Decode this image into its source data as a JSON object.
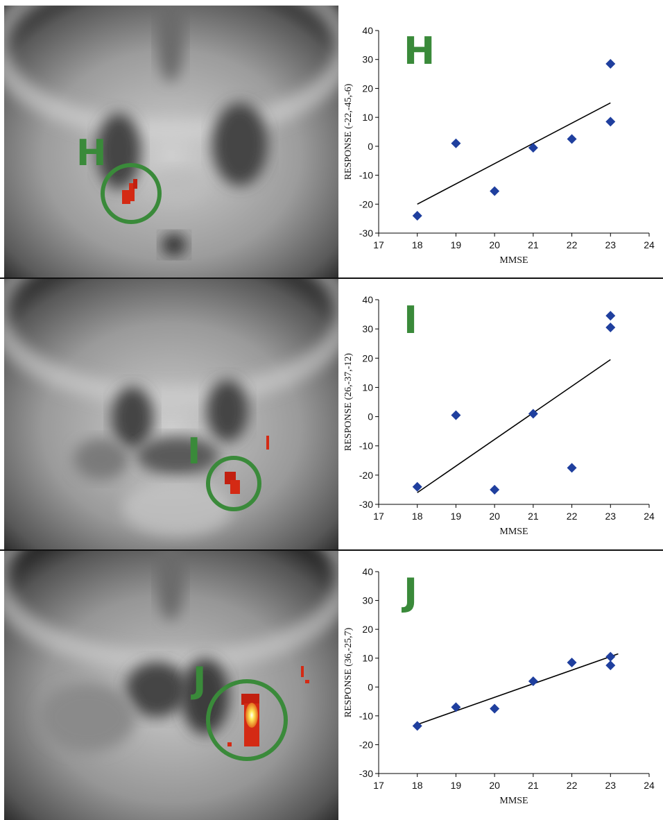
{
  "colors": {
    "marker": "#1f3f9e",
    "trendline": "#000000",
    "label_green": "#3a8a3a",
    "activation_red": "#d42a14",
    "activation_hot": "#ffe95a"
  },
  "panels": [
    {
      "letter": "H",
      "brain_label": "H",
      "chart_data": {
        "type": "scatter",
        "title": "H",
        "xlabel": "MMSE",
        "ylabel": "RESPONSE (-22,-45,-6)",
        "xlim": [
          17,
          24
        ],
        "ylim": [
          -30,
          40
        ],
        "x_ticks": [
          "17",
          "18",
          "19",
          "20",
          "21",
          "22",
          "23",
          "24"
        ],
        "y_ticks": [
          "-30",
          "-20",
          "-10",
          "0",
          "10",
          "20",
          "30",
          "40"
        ],
        "grid": false,
        "points": [
          [
            18,
            -24
          ],
          [
            19,
            1
          ],
          [
            20,
            -15.5
          ],
          [
            21,
            -0.5
          ],
          [
            22,
            2.5
          ],
          [
            23,
            28.5
          ],
          [
            23,
            8.5
          ]
        ],
        "trendline": [
          [
            18,
            -20
          ],
          [
            23,
            15
          ]
        ]
      }
    },
    {
      "letter": "I",
      "brain_label": "I",
      "chart_data": {
        "type": "scatter",
        "title": "I",
        "xlabel": "MMSE",
        "ylabel": "RESPONSE (26,-37,-12)",
        "xlim": [
          17,
          24
        ],
        "ylim": [
          -30,
          40
        ],
        "x_ticks": [
          "17",
          "18",
          "19",
          "20",
          "21",
          "22",
          "23",
          "24"
        ],
        "y_ticks": [
          "-30",
          "-20",
          "-10",
          "0",
          "10",
          "20",
          "30",
          "40"
        ],
        "grid": false,
        "points": [
          [
            18,
            -24
          ],
          [
            19,
            0.5
          ],
          [
            20,
            -25
          ],
          [
            21,
            1
          ],
          [
            22,
            -17.5
          ],
          [
            23,
            34.5
          ],
          [
            23,
            30.5
          ]
        ],
        "trendline": [
          [
            18,
            -26
          ],
          [
            23,
            19.5
          ]
        ]
      }
    },
    {
      "letter": "J",
      "brain_label": "J",
      "chart_data": {
        "type": "scatter",
        "title": "J",
        "xlabel": "MMSE",
        "ylabel": "RESPONSE (36,-25,7)",
        "xlim": [
          17,
          24
        ],
        "ylim": [
          -30,
          40
        ],
        "x_ticks": [
          "17",
          "18",
          "19",
          "20",
          "21",
          "22",
          "23",
          "24"
        ],
        "y_ticks": [
          "-30",
          "-20",
          "-10",
          "0",
          "10",
          "20",
          "30",
          "40"
        ],
        "grid": false,
        "points": [
          [
            18,
            -13.5
          ],
          [
            19,
            -7
          ],
          [
            20,
            -7.5
          ],
          [
            21,
            2
          ],
          [
            22,
            8.5
          ],
          [
            23,
            10.5
          ],
          [
            23,
            7.5
          ]
        ],
        "trendline": [
          [
            18,
            -13
          ],
          [
            23.2,
            11.5
          ]
        ]
      }
    }
  ]
}
